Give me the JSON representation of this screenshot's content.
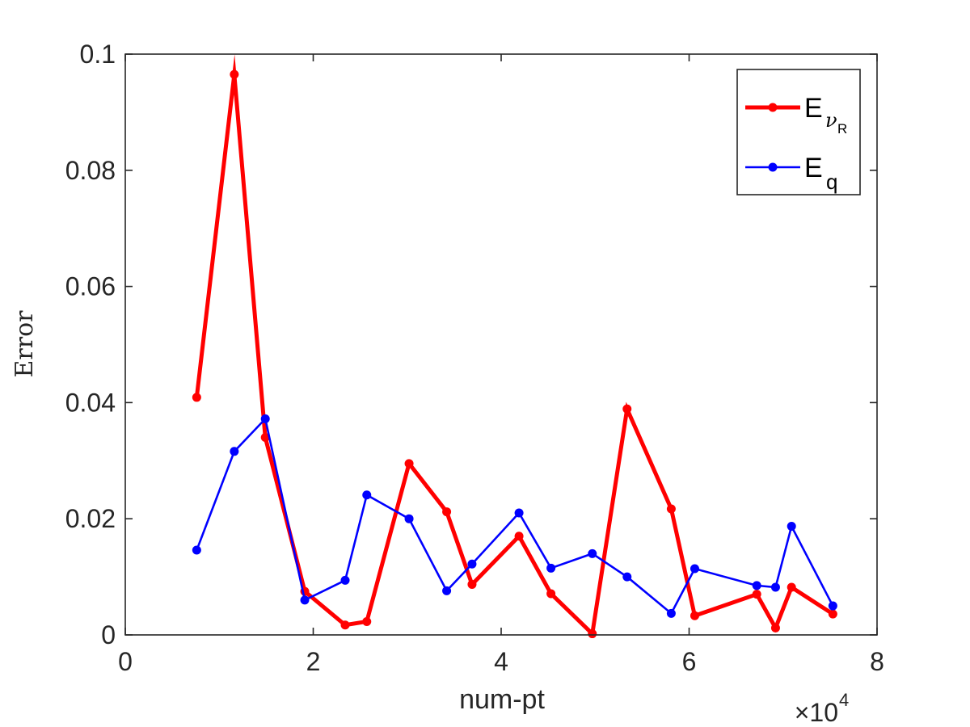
{
  "chart_data": {
    "type": "line",
    "title": "",
    "xlabel": "num-pt",
    "ylabel": "Error",
    "xlim": [
      0,
      8
    ],
    "ylim": [
      0,
      0.1
    ],
    "x_multiplier": "×10",
    "x_multiplier_exponent": "4",
    "x_ticks": [
      "0",
      "2",
      "4",
      "6",
      "8"
    ],
    "y_ticks": [
      "0",
      "0.02",
      "0.04",
      "0.06",
      "0.08",
      "0.1"
    ],
    "grid": false,
    "legend_position": "top-right",
    "series": [
      {
        "name": "Eν_R",
        "legend_base": "E",
        "legend_sub": "ν",
        "legend_subsub": "R",
        "color": "#ff0000",
        "line_width": "thick",
        "x": [
          0.76,
          1.16,
          1.49,
          1.91,
          2.34,
          2.57,
          3.02,
          3.42,
          3.69,
          4.19,
          4.53,
          4.97,
          5.34,
          5.81,
          6.06,
          6.72,
          6.92,
          7.09,
          7.53
        ],
        "y": [
          0.0409,
          0.0965,
          0.034,
          0.0075,
          0.0017,
          0.0023,
          0.0295,
          0.0212,
          0.0087,
          0.017,
          0.0071,
          0.0002,
          0.0389,
          0.0217,
          0.0033,
          0.007,
          0.0012,
          0.0082,
          0.0036
        ]
      },
      {
        "name": "Eq",
        "legend_base": "E",
        "legend_sub": "q",
        "color": "#0000ff",
        "line_width": "thin",
        "x": [
          0.76,
          1.16,
          1.49,
          1.91,
          2.34,
          2.57,
          3.02,
          3.42,
          3.69,
          4.19,
          4.53,
          4.97,
          5.34,
          5.81,
          6.06,
          6.72,
          6.92,
          7.09,
          7.53
        ],
        "y": [
          0.0146,
          0.0316,
          0.0372,
          0.006,
          0.0094,
          0.0241,
          0.02,
          0.0076,
          0.0122,
          0.021,
          0.0115,
          0.014,
          0.01,
          0.0037,
          0.0114,
          0.0085,
          0.0082,
          0.0187,
          0.005
        ]
      }
    ]
  }
}
